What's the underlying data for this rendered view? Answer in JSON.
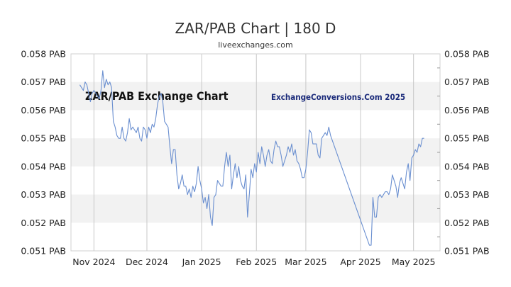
{
  "header": {
    "title": "ZAR/PAB Chart | 180 D",
    "subtitle": "liveexchanges.com"
  },
  "watermark": {
    "left": "ZAR/PAB Exchange Chart",
    "right": "ExchangeConversions.Com 2025"
  },
  "chart_data": {
    "type": "line",
    "title": "ZAR/PAB Chart | 180 D",
    "ylim": [
      0.051,
      0.058
    ],
    "y_ticks": [
      {
        "value": 0.058,
        "label": "0.058 PAB"
      },
      {
        "value": 0.057,
        "label": "0.057 PAB"
      },
      {
        "value": 0.056,
        "label": "0.056 PAB"
      },
      {
        "value": 0.055,
        "label": "0.055 PAB"
      },
      {
        "value": 0.054,
        "label": "0.054 PAB"
      },
      {
        "value": 0.053,
        "label": "0.053 PAB"
      },
      {
        "value": 0.052,
        "label": "0.052 PAB"
      },
      {
        "value": 0.051,
        "label": "0.051 PAB"
      }
    ],
    "x_range": [
      "2024-10-19",
      "2025-05-16"
    ],
    "x_ticks": [
      {
        "date": "2024-11-01",
        "label": "Nov 2024"
      },
      {
        "date": "2024-12-01",
        "label": "Dec 2024"
      },
      {
        "date": "2025-01-01",
        "label": "Jan 2025"
      },
      {
        "date": "2025-02-01",
        "label": "Feb 2025"
      },
      {
        "date": "2025-03-01",
        "label": "Mar 2025"
      },
      {
        "date": "2025-04-01",
        "label": "Apr 2025"
      },
      {
        "date": "2025-05-01",
        "label": "May 2025"
      }
    ],
    "grid": true,
    "line_color": "#6a8fd0",
    "band_color": "#f2f2f2",
    "series": [
      {
        "values": [
          [
            "2024-10-24",
            0.0569
          ],
          [
            "2024-10-25",
            0.0568
          ],
          [
            "2024-10-26",
            0.0567
          ],
          [
            "2024-10-27",
            0.057
          ],
          [
            "2024-10-28",
            0.0569
          ],
          [
            "2024-10-29",
            0.0566
          ],
          [
            "2024-10-30",
            0.0563
          ],
          [
            "2024-10-31",
            0.0566
          ],
          [
            "2024-11-01",
            0.0567
          ],
          [
            "2024-11-02",
            0.0566
          ],
          [
            "2024-11-03",
            0.0565
          ],
          [
            "2024-11-04",
            0.0564
          ],
          [
            "2024-11-05",
            0.0567
          ],
          [
            "2024-11-06",
            0.0574
          ],
          [
            "2024-11-07",
            0.0568
          ],
          [
            "2024-11-08",
            0.0571
          ],
          [
            "2024-11-09",
            0.0569
          ],
          [
            "2024-11-10",
            0.057
          ],
          [
            "2024-11-11",
            0.0568
          ],
          [
            "2024-11-12",
            0.0556
          ],
          [
            "2024-11-13",
            0.0554
          ],
          [
            "2024-11-14",
            0.0551
          ],
          [
            "2024-11-15",
            0.055
          ],
          [
            "2024-11-16",
            0.055
          ],
          [
            "2024-11-17",
            0.0554
          ],
          [
            "2024-11-18",
            0.055
          ],
          [
            "2024-11-19",
            0.0549
          ],
          [
            "2024-11-20",
            0.0552
          ],
          [
            "2024-11-21",
            0.0557
          ],
          [
            "2024-11-22",
            0.0553
          ],
          [
            "2024-11-23",
            0.0554
          ],
          [
            "2024-11-24",
            0.0553
          ],
          [
            "2024-11-25",
            0.0552
          ],
          [
            "2024-11-26",
            0.0554
          ],
          [
            "2024-11-27",
            0.055
          ],
          [
            "2024-11-28",
            0.0549
          ],
          [
            "2024-11-29",
            0.0554
          ],
          [
            "2024-11-30",
            0.0553
          ],
          [
            "2024-12-01",
            0.055
          ],
          [
            "2024-12-02",
            0.0554
          ],
          [
            "2024-12-03",
            0.0552
          ],
          [
            "2024-12-04",
            0.0555
          ],
          [
            "2024-12-05",
            0.0554
          ],
          [
            "2024-12-06",
            0.0557
          ],
          [
            "2024-12-07",
            0.0562
          ],
          [
            "2024-12-08",
            0.0565
          ],
          [
            "2024-12-09",
            0.0566
          ],
          [
            "2024-12-10",
            0.0563
          ],
          [
            "2024-12-11",
            0.0556
          ],
          [
            "2024-12-12",
            0.0555
          ],
          [
            "2024-12-13",
            0.0554
          ],
          [
            "2024-12-14",
            0.0547
          ],
          [
            "2024-12-15",
            0.0541
          ],
          [
            "2024-12-16",
            0.0546
          ],
          [
            "2024-12-17",
            0.0546
          ],
          [
            "2024-12-18",
            0.0537
          ],
          [
            "2024-12-19",
            0.0532
          ],
          [
            "2024-12-20",
            0.0534
          ],
          [
            "2024-12-21",
            0.0537
          ],
          [
            "2024-12-22",
            0.0533
          ],
          [
            "2024-12-23",
            0.0533
          ],
          [
            "2024-12-24",
            0.053
          ],
          [
            "2024-12-25",
            0.0532
          ],
          [
            "2024-12-26",
            0.0529
          ],
          [
            "2024-12-27",
            0.0533
          ],
          [
            "2024-12-28",
            0.0531
          ],
          [
            "2024-12-29",
            0.0534
          ],
          [
            "2024-12-30",
            0.054
          ],
          [
            "2024-12-31",
            0.0535
          ],
          [
            "2025-01-01",
            0.0532
          ],
          [
            "2025-01-02",
            0.0527
          ],
          [
            "2025-01-03",
            0.0529
          ],
          [
            "2025-01-04",
            0.0525
          ],
          [
            "2025-01-05",
            0.053
          ],
          [
            "2025-01-06",
            0.0522
          ],
          [
            "2025-01-07",
            0.0519
          ],
          [
            "2025-01-08",
            0.0529
          ],
          [
            "2025-01-09",
            0.053
          ],
          [
            "2025-01-10",
            0.0535
          ],
          [
            "2025-01-11",
            0.0534
          ],
          [
            "2025-01-12",
            0.0533
          ],
          [
            "2025-01-13",
            0.0533
          ],
          [
            "2025-01-14",
            0.054
          ],
          [
            "2025-01-15",
            0.0545
          ],
          [
            "2025-01-16",
            0.054
          ],
          [
            "2025-01-17",
            0.0544
          ],
          [
            "2025-01-18",
            0.0532
          ],
          [
            "2025-01-19",
            0.0537
          ],
          [
            "2025-01-20",
            0.0541
          ],
          [
            "2025-01-21",
            0.0536
          ],
          [
            "2025-01-22",
            0.054
          ],
          [
            "2025-01-23",
            0.0535
          ],
          [
            "2025-01-24",
            0.0533
          ],
          [
            "2025-01-25",
            0.0532
          ],
          [
            "2025-01-26",
            0.0537
          ],
          [
            "2025-01-27",
            0.0522
          ],
          [
            "2025-01-28",
            0.053
          ],
          [
            "2025-01-29",
            0.0539
          ],
          [
            "2025-01-30",
            0.0536
          ],
          [
            "2025-01-31",
            0.0541
          ],
          [
            "2025-02-01",
            0.0538
          ],
          [
            "2025-02-02",
            0.0545
          ],
          [
            "2025-02-03",
            0.0541
          ],
          [
            "2025-02-04",
            0.0547
          ],
          [
            "2025-02-05",
            0.0544
          ],
          [
            "2025-02-06",
            0.054
          ],
          [
            "2025-02-07",
            0.0544
          ],
          [
            "2025-02-08",
            0.0546
          ],
          [
            "2025-02-09",
            0.0542
          ],
          [
            "2025-02-10",
            0.0541
          ],
          [
            "2025-02-11",
            0.0546
          ],
          [
            "2025-02-12",
            0.0549
          ],
          [
            "2025-02-13",
            0.0547
          ],
          [
            "2025-02-14",
            0.0547
          ],
          [
            "2025-02-15",
            0.0544
          ],
          [
            "2025-02-16",
            0.054
          ],
          [
            "2025-02-17",
            0.0542
          ],
          [
            "2025-02-18",
            0.0544
          ],
          [
            "2025-02-19",
            0.0547
          ],
          [
            "2025-02-20",
            0.0545
          ],
          [
            "2025-02-21",
            0.0548
          ],
          [
            "2025-02-22",
            0.0544
          ],
          [
            "2025-02-23",
            0.0546
          ],
          [
            "2025-02-24",
            0.0542
          ],
          [
            "2025-02-25",
            0.0541
          ],
          [
            "2025-02-26",
            0.0539
          ],
          [
            "2025-02-27",
            0.0536
          ],
          [
            "2025-02-28",
            0.0536
          ],
          [
            "2025-03-01",
            0.0539
          ],
          [
            "2025-03-02",
            0.0545
          ],
          [
            "2025-03-03",
            0.0553
          ],
          [
            "2025-03-04",
            0.0552
          ],
          [
            "2025-03-05",
            0.0548
          ],
          [
            "2025-03-06",
            0.0548
          ],
          [
            "2025-03-07",
            0.0548
          ],
          [
            "2025-03-08",
            0.0544
          ],
          [
            "2025-03-09",
            0.0543
          ],
          [
            "2025-03-10",
            0.055
          ],
          [
            "2025-03-11",
            0.0551
          ],
          [
            "2025-03-12",
            0.0552
          ],
          [
            "2025-03-13",
            0.0551
          ],
          [
            "2025-03-14",
            0.0554
          ],
          [
            "2025-03-15",
            0.0551
          ],
          [
            "2025-04-06",
            0.0512
          ],
          [
            "2025-04-07",
            0.0512
          ],
          [
            "2025-04-08",
            0.0529
          ],
          [
            "2025-04-09",
            0.0522
          ],
          [
            "2025-04-10",
            0.0522
          ],
          [
            "2025-04-11",
            0.0529
          ],
          [
            "2025-04-12",
            0.053
          ],
          [
            "2025-04-13",
            0.0529
          ],
          [
            "2025-04-14",
            0.053
          ],
          [
            "2025-04-15",
            0.0531
          ],
          [
            "2025-04-16",
            0.0531
          ],
          [
            "2025-04-17",
            0.053
          ],
          [
            "2025-04-18",
            0.0532
          ],
          [
            "2025-04-19",
            0.0537
          ],
          [
            "2025-04-20",
            0.0535
          ],
          [
            "2025-04-21",
            0.0533
          ],
          [
            "2025-04-22",
            0.0529
          ],
          [
            "2025-04-23",
            0.0534
          ],
          [
            "2025-04-24",
            0.0536
          ],
          [
            "2025-04-25",
            0.0534
          ],
          [
            "2025-04-26",
            0.0532
          ],
          [
            "2025-04-27",
            0.0538
          ],
          [
            "2025-04-28",
            0.0541
          ],
          [
            "2025-04-29",
            0.0535
          ],
          [
            "2025-04-30",
            0.0543
          ],
          [
            "2025-05-01",
            0.0544
          ],
          [
            "2025-05-02",
            0.0546
          ],
          [
            "2025-05-03",
            0.0545
          ],
          [
            "2025-05-04",
            0.0548
          ],
          [
            "2025-05-05",
            0.0547
          ],
          [
            "2025-05-06",
            0.055
          ],
          [
            "2025-05-07",
            0.055
          ]
        ]
      }
    ]
  }
}
